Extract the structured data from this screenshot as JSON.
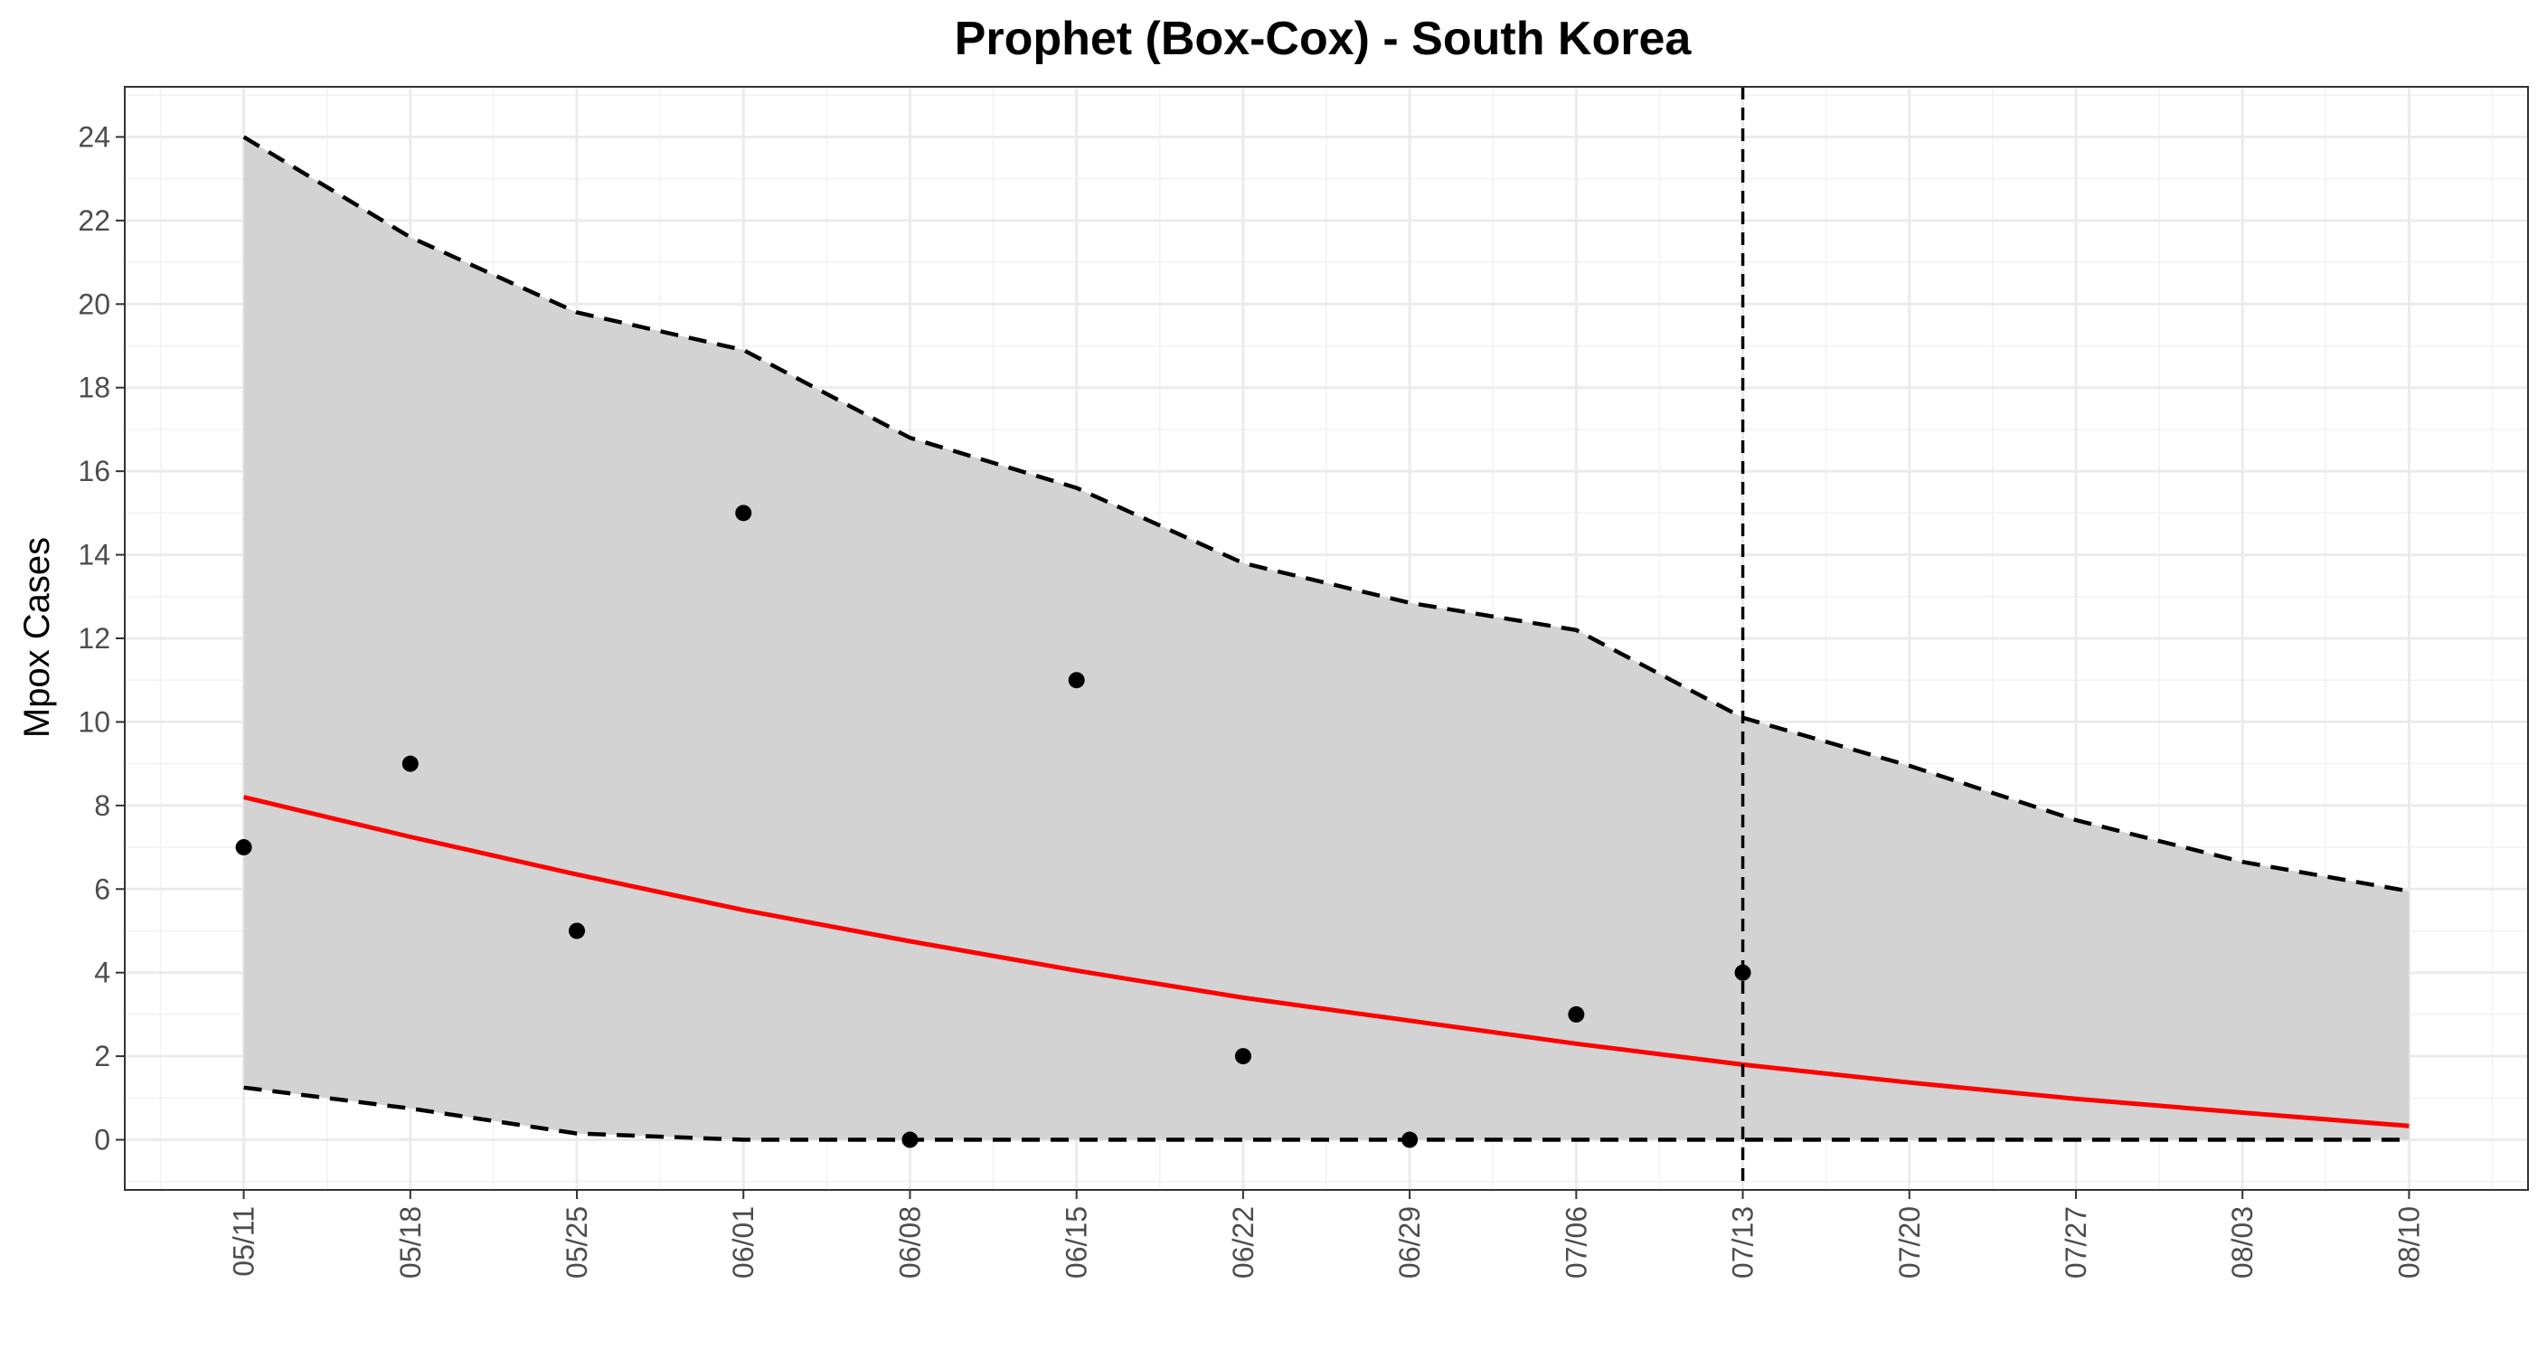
{
  "chart_data": {
    "type": "line",
    "title": "Prophet (Box-Cox) - South Korea",
    "xlabel": "",
    "ylabel": "Mpox Cases",
    "x_tick_labels": [
      "05/11",
      "05/18",
      "05/25",
      "06/01",
      "06/08",
      "06/15",
      "06/22",
      "06/29",
      "07/06",
      "07/13",
      "07/20",
      "07/27",
      "08/03",
      "08/10"
    ],
    "y_ticks": [
      0,
      2,
      4,
      6,
      8,
      10,
      12,
      14,
      16,
      18,
      20,
      22,
      24
    ],
    "y_tick_labels": [
      "0",
      "2",
      "4",
      "6",
      "8",
      "10",
      "12",
      "14",
      "16",
      "18",
      "20",
      "22",
      "24"
    ],
    "ylim": [
      -1.2,
      25.2
    ],
    "xlim": [
      "05/06",
      "08/15"
    ],
    "grid": true,
    "forecast_start": "07/13",
    "observed": {
      "x": [
        "05/11",
        "05/18",
        "05/25",
        "06/01",
        "06/08",
        "06/15",
        "06/22",
        "06/29",
        "07/06",
        "07/13"
      ],
      "y": [
        7,
        9,
        5,
        15,
        0,
        11,
        2,
        0,
        3,
        4
      ]
    },
    "series": [
      {
        "values": [
          8.2,
          7.25,
          6.35,
          5.5,
          4.75,
          4.05,
          3.4,
          2.85,
          2.3,
          1.8,
          1.37,
          0.98,
          0.65,
          0.33
        ]
      },
      {
        "values": [
          24.0,
          21.6,
          19.8,
          18.9,
          16.8,
          15.6,
          13.8,
          12.85,
          12.2,
          10.1,
          8.95,
          7.65,
          6.65,
          5.95
        ]
      },
      {
        "values": [
          1.25,
          0.75,
          0.15,
          0,
          0,
          0,
          0,
          0,
          0,
          0,
          0,
          0,
          0,
          0
        ]
      }
    ],
    "colors": {
      "forecast_line": "#ff0000",
      "interval_fill": "#d3d3d3",
      "interval_border": "#000000",
      "points": "#000000",
      "grid_major": "#ebebeb",
      "grid_minor": "#f2f2f2",
      "panel_border": "#333333"
    }
  }
}
